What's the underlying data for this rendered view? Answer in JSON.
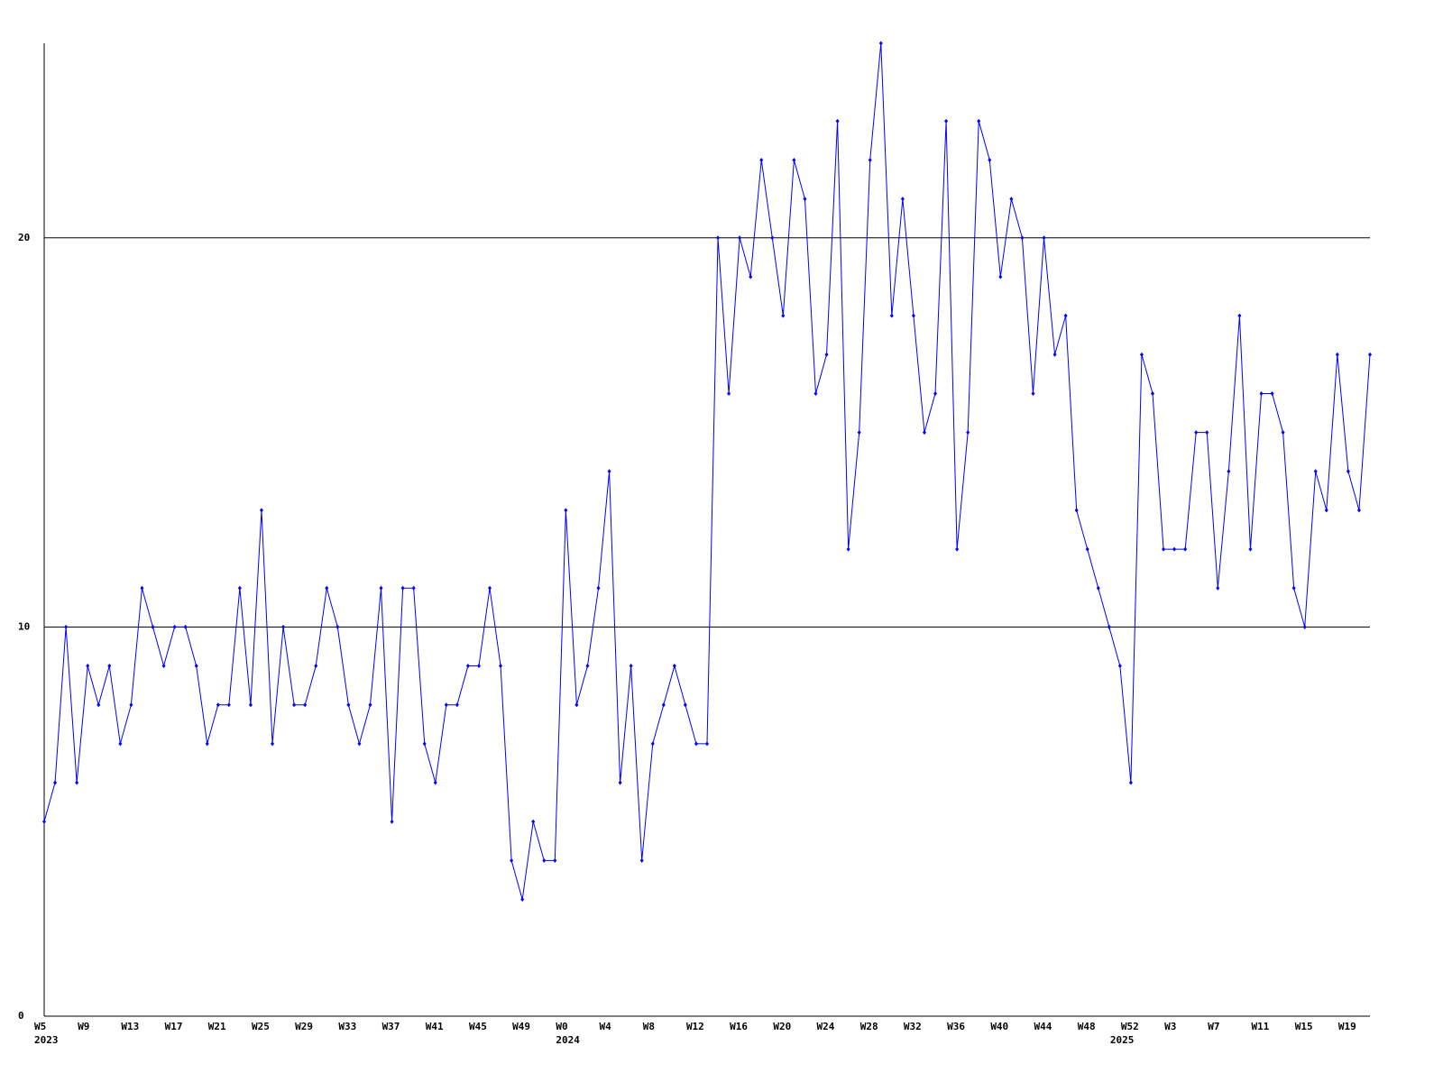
{
  "chart_data": {
    "type": "line",
    "categories": [
      "W5",
      null,
      null,
      null,
      "W9",
      null,
      null,
      null,
      "W13",
      null,
      null,
      null,
      "W17",
      null,
      null,
      null,
      "W21",
      null,
      null,
      null,
      "W25",
      null,
      null,
      null,
      "W29",
      null,
      null,
      null,
      "W33",
      null,
      null,
      null,
      "W37",
      null,
      null,
      null,
      "W41",
      null,
      null,
      null,
      "W45",
      null,
      null,
      null,
      "W49",
      null,
      null,
      null,
      "W0",
      null,
      null,
      null,
      "W4",
      null,
      null,
      null,
      "W8",
      null,
      null,
      null,
      "W12",
      null,
      null,
      null,
      "W16",
      null,
      null,
      null,
      "W20",
      null,
      null,
      null,
      "W24",
      null,
      null,
      null,
      "W28",
      null,
      null,
      null,
      "W32",
      null,
      null,
      null,
      "W36",
      null,
      null,
      null,
      "W40",
      null,
      null,
      null,
      "W44",
      null,
      null,
      null,
      "W48",
      null,
      null,
      null,
      "W52",
      null,
      null,
      null,
      "W3",
      null,
      null,
      null,
      "W7",
      null,
      null,
      null,
      "W11",
      null,
      null,
      null,
      "W15",
      null,
      null,
      null,
      "W19",
      null,
      null
    ],
    "years": [
      "2023",
      null,
      null,
      null,
      null,
      null,
      null,
      null,
      null,
      null,
      null,
      null,
      null,
      null,
      null,
      null,
      null,
      null,
      null,
      null,
      null,
      null,
      null,
      null,
      null,
      null,
      null,
      null,
      null,
      null,
      null,
      null,
      null,
      null,
      null,
      null,
      null,
      null,
      null,
      null,
      null,
      null,
      null,
      null,
      null,
      null,
      null,
      null,
      "2024",
      null,
      null,
      null,
      null,
      null,
      null,
      null,
      null,
      null,
      null,
      null,
      null,
      null,
      null,
      null,
      null,
      null,
      null,
      null,
      null,
      null,
      null,
      null,
      null,
      null,
      null,
      null,
      null,
      null,
      null,
      null,
      null,
      null,
      null,
      null,
      null,
      null,
      null,
      null,
      null,
      null,
      null,
      null,
      null,
      null,
      null,
      null,
      null,
      null,
      null,
      "2025",
      null,
      null,
      null,
      null,
      null,
      null,
      null,
      null,
      null,
      null,
      null,
      null,
      null,
      null,
      null,
      null,
      null,
      null,
      null,
      null,
      null
    ],
    "values": [
      5,
      6,
      10,
      6,
      9,
      8,
      9,
      7,
      8,
      11,
      10,
      9,
      10,
      10,
      9,
      7,
      8,
      8,
      11,
      8,
      13,
      7,
      10,
      8,
      8,
      9,
      11,
      10,
      8,
      7,
      8,
      11,
      5,
      11,
      11,
      7,
      6,
      8,
      8,
      9,
      9,
      11,
      9,
      4,
      3,
      5,
      4,
      4,
      13,
      8,
      9,
      11,
      14,
      6,
      9,
      4,
      7,
      8,
      9,
      8,
      7,
      7,
      20,
      16,
      20,
      19,
      22,
      20,
      18,
      22,
      21,
      16,
      17,
      23,
      12,
      15,
      22,
      25,
      18,
      21,
      18,
      15,
      16,
      23,
      12,
      15,
      23,
      22,
      19,
      21,
      20,
      16,
      20,
      17,
      18,
      13,
      12,
      11,
      10,
      9,
      6,
      17,
      16,
      12,
      12,
      12,
      15,
      15,
      11,
      14,
      18,
      12,
      16,
      16,
      15,
      11,
      10,
      14,
      13,
      17,
      14,
      13,
      17
    ],
    "color": "#0000ff",
    "ylim": [
      0,
      25
    ],
    "yticks": [
      0,
      10,
      20
    ],
    "grid": true
  }
}
